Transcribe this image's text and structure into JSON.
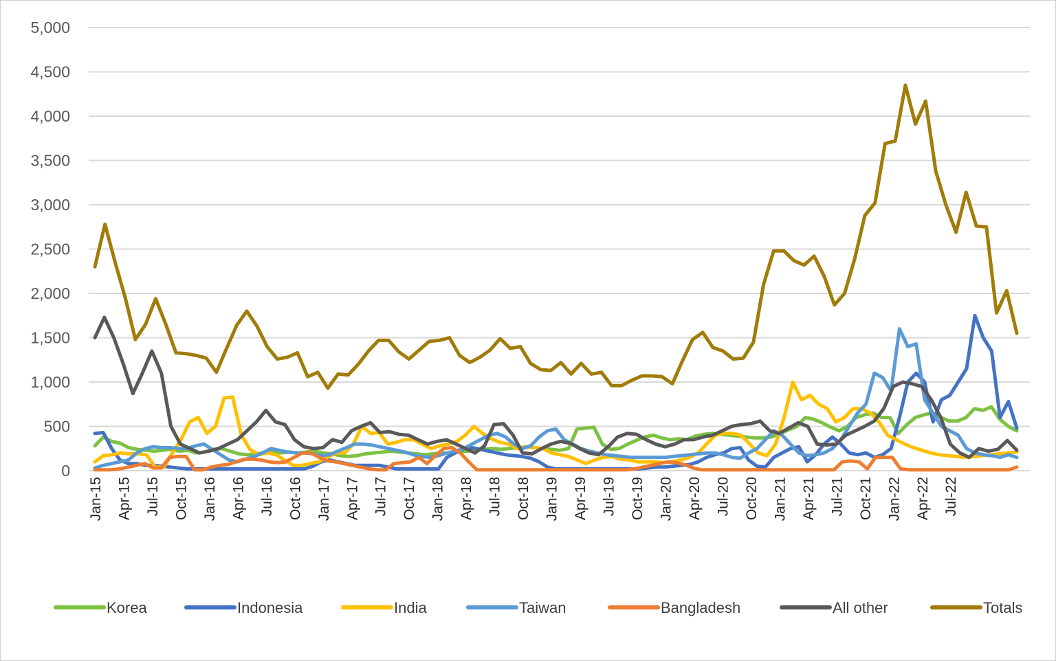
{
  "chart_data": {
    "type": "line",
    "title": "",
    "xlabel": "",
    "ylabel": "",
    "ylim": [
      0,
      5000
    ],
    "yticks": [
      "0",
      "500",
      "1,000",
      "1,500",
      "2,000",
      "2,500",
      "3,000",
      "3,500",
      "4,000",
      "4,500",
      "5,000"
    ],
    "x_start": "Jan-15",
    "x_end": "Aug-22",
    "xticks": [
      "Jan-15",
      "Apr-15",
      "Jul-15",
      "Oct-15",
      "Jan-16",
      "Apr-16",
      "Jul-16",
      "Oct-16",
      "Jan-17",
      "Apr-17",
      "Jul-17",
      "Oct-17",
      "Jan-18",
      "Apr-18",
      "Jul-18",
      "Oct-18",
      "Jan-19",
      "Apr-19",
      "Jul-19",
      "Oct-19",
      "Jan-20",
      "Apr-20",
      "Jul-20",
      "Oct-20",
      "Jan-21",
      "Apr-21",
      "Jul-21",
      "Oct-21",
      "Jan-22",
      "Apr-22",
      "Jul-22"
    ],
    "grid": true,
    "legend_position": "bottom",
    "series": [
      {
        "name": "Korea",
        "color": "#7DC142",
        "values": [
          280,
          380,
          330,
          310,
          260,
          240,
          230,
          220,
          230,
          240,
          220,
          230,
          200,
          210,
          240,
          250,
          220,
          190,
          180,
          190,
          200,
          210,
          200,
          210,
          200,
          210,
          220,
          200,
          190,
          170,
          160,
          170,
          190,
          200,
          210,
          220,
          210,
          200,
          190,
          180,
          190,
          200,
          200,
          210,
          220,
          230,
          240,
          250,
          240,
          250,
          260,
          270,
          260,
          250,
          240,
          230,
          250,
          470,
          480,
          490,
          300,
          240,
          250,
          300,
          340,
          380,
          400,
          370,
          350,
          360,
          350,
          390,
          410,
          420,
          410,
          400,
          390,
          380,
          370,
          370,
          380,
          420,
          460,
          500,
          600,
          580,
          540,
          490,
          450,
          500,
          600,
          630,
          650,
          600,
          600,
          420,
          520,
          600,
          630,
          650,
          600,
          560,
          560,
          600,
          700,
          680,
          720,
          580,
          500,
          450
        ]
      },
      {
        "name": "Indonesia",
        "color": "#4472C4",
        "values": [
          420,
          430,
          250,
          120,
          80,
          80,
          60,
          60,
          50,
          40,
          30,
          20,
          20,
          20,
          20,
          20,
          20,
          20,
          20,
          20,
          20,
          20,
          20,
          20,
          20,
          20,
          50,
          100,
          120,
          100,
          80,
          60,
          60,
          60,
          60,
          40,
          20,
          20,
          20,
          20,
          20,
          20,
          150,
          200,
          250,
          260,
          240,
          220,
          200,
          180,
          170,
          160,
          140,
          100,
          40,
          20,
          20,
          20,
          20,
          20,
          20,
          20,
          20,
          20,
          20,
          20,
          30,
          40,
          40,
          50,
          60,
          70,
          100,
          150,
          180,
          200,
          250,
          260,
          120,
          50,
          40,
          150,
          200,
          250,
          270,
          100,
          180,
          300,
          380,
          300,
          200,
          180,
          200,
          150,
          180,
          250,
          600,
          1000,
          1100,
          1000,
          550,
          800,
          850,
          1000,
          1150,
          1750,
          1500,
          1350,
          600,
          780,
          480
        ]
      },
      {
        "name": "India",
        "color": "#FFC000",
        "values": [
          100,
          170,
          180,
          200,
          190,
          190,
          180,
          40,
          40,
          200,
          350,
          550,
          600,
          420,
          500,
          820,
          830,
          400,
          240,
          180,
          200,
          180,
          120,
          60,
          60,
          80,
          100,
          150,
          200,
          200,
          300,
          500,
          420,
          430,
          300,
          320,
          350,
          350,
          300,
          250,
          280,
          300,
          330,
          400,
          500,
          420,
          360,
          320,
          300,
          250,
          270,
          260,
          250,
          200,
          180,
          160,
          120,
          80,
          120,
          150,
          160,
          130,
          120,
          100,
          100,
          100,
          90,
          100,
          120,
          150,
          200,
          300,
          400,
          420,
          420,
          400,
          300,
          200,
          170,
          300,
          600,
          1000,
          800,
          850,
          750,
          700,
          550,
          600,
          700,
          700,
          650,
          550,
          400,
          350,
          300,
          260,
          230,
          200,
          180,
          170,
          160,
          150,
          160,
          170,
          180,
          190,
          200,
          210
        ]
      },
      {
        "name": "Taiwan",
        "color": "#5B9BD5",
        "values": [
          30,
          60,
          80,
          100,
          120,
          200,
          250,
          270,
          260,
          260,
          250,
          250,
          280,
          300,
          240,
          180,
          120,
          100,
          130,
          160,
          200,
          250,
          230,
          210,
          200,
          200,
          190,
          170,
          180,
          220,
          260,
          300,
          300,
          290,
          270,
          250,
          230,
          210,
          180,
          160,
          150,
          170,
          200,
          220,
          250,
          300,
          350,
          400,
          420,
          380,
          300,
          250,
          280,
          380,
          450,
          470,
          350,
          300,
          250,
          220,
          200,
          180,
          170,
          160,
          150,
          150,
          150,
          150,
          150,
          160,
          170,
          180,
          190,
          200,
          200,
          180,
          150,
          140,
          200,
          250,
          350,
          450,
          400,
          300,
          200,
          170,
          180,
          200,
          250,
          350,
          500,
          650,
          750,
          1100,
          1050,
          900,
          1600,
          1400,
          1430,
          800,
          650,
          500,
          450,
          400,
          250,
          200,
          180,
          170,
          150,
          180,
          150
        ]
      },
      {
        "name": "Bangladesh",
        "color": "#ED7D31",
        "values": [
          10,
          10,
          10,
          20,
          40,
          60,
          80,
          30,
          30,
          150,
          160,
          160,
          10,
          10,
          40,
          60,
          70,
          100,
          130,
          130,
          120,
          100,
          90,
          100,
          150,
          200,
          200,
          150,
          110,
          100,
          80,
          60,
          40,
          20,
          10,
          10,
          80,
          90,
          100,
          150,
          80,
          170,
          250,
          260,
          200,
          100,
          10,
          10,
          10,
          10,
          10,
          10,
          10,
          10,
          10,
          10,
          10,
          10,
          10,
          10,
          10,
          10,
          10,
          10,
          10,
          20,
          40,
          60,
          80,
          100,
          90,
          70,
          30,
          10,
          10,
          10,
          10,
          10,
          10,
          10,
          10,
          10,
          10,
          10,
          10,
          10,
          10,
          10,
          10,
          10,
          100,
          110,
          100,
          20,
          150,
          150,
          150,
          20,
          10,
          10,
          10,
          10,
          10,
          10,
          10,
          10,
          10,
          10,
          10,
          10,
          10,
          40
        ]
      },
      {
        "name": "All other",
        "color": "#595959",
        "values": [
          1500,
          1730,
          1500,
          1200,
          870,
          1100,
          1350,
          1100,
          500,
          300,
          250,
          200,
          220,
          250,
          300,
          350,
          450,
          550,
          680,
          550,
          520,
          350,
          270,
          250,
          260,
          350,
          320,
          450,
          500,
          540,
          430,
          440,
          410,
          400,
          350,
          300,
          330,
          350,
          300,
          250,
          200,
          280,
          520,
          530,
          400,
          200,
          190,
          250,
          300,
          330,
          310,
          250,
          200,
          180,
          270,
          380,
          420,
          410,
          350,
          300,
          270,
          300,
          350,
          350,
          380,
          400,
          450,
          500,
          520,
          530,
          560,
          450,
          420,
          480,
          540,
          500,
          300,
          290,
          300,
          400,
          450,
          500,
          560,
          700,
          950,
          1000,
          980,
          950,
          800,
          600,
          300,
          200,
          150,
          250,
          220,
          240,
          340,
          230
        ]
      },
      {
        "name": "Totals",
        "color": "#A17C0A",
        "values": [
          2300,
          2780,
          2350,
          1950,
          1480,
          1650,
          1940,
          1650,
          1330,
          1320,
          1300,
          1270,
          1110,
          1380,
          1640,
          1800,
          1630,
          1400,
          1260,
          1280,
          1330,
          1060,
          1110,
          930,
          1090,
          1080,
          1200,
          1350,
          1470,
          1470,
          1340,
          1260,
          1360,
          1460,
          1470,
          1500,
          1300,
          1220,
          1280,
          1360,
          1490,
          1380,
          1400,
          1210,
          1140,
          1130,
          1220,
          1090,
          1210,
          1090,
          1110,
          960,
          960,
          1020,
          1070,
          1070,
          1060,
          980,
          1240,
          1480,
          1560,
          1390,
          1350,
          1260,
          1270,
          1450,
          2100,
          2480,
          2480,
          2370,
          2320,
          2420,
          2190,
          1870,
          2000,
          2390,
          2880,
          3020,
          3690,
          3720,
          4350,
          3910,
          4170,
          3380,
          3000,
          2690,
          3140,
          2760,
          2750,
          1780,
          2030,
          1550
        ]
      }
    ]
  }
}
